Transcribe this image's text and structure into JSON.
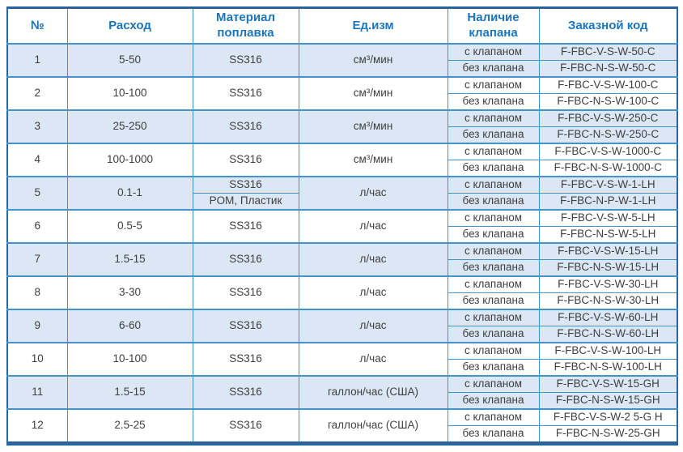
{
  "table": {
    "headers": {
      "num": "№",
      "flow": "Расход",
      "material": "Материал поплавка",
      "unit": "Ед.изм",
      "valve": "Наличие клапана",
      "code": "Заказной код"
    },
    "rows": [
      {
        "num": "1",
        "flow": "5-50",
        "material": "SS316",
        "unit": "см³/мин",
        "variants": [
          {
            "valve": "с клапаном",
            "code": "F-FBC-V-S-W-50-C"
          },
          {
            "valve": "без клапана",
            "code": "F-FBC-N-S-W-50-C"
          }
        ]
      },
      {
        "num": "2",
        "flow": "10-100",
        "material": "SS316",
        "unit": "см³/мин",
        "variants": [
          {
            "valve": "с клапаном",
            "code": "F-FBC-V-S-W-100-C"
          },
          {
            "valve": "без клапана",
            "code": "F-FBC-N-S-W-100-C"
          }
        ]
      },
      {
        "num": "3",
        "flow": "25-250",
        "material": "SS316",
        "unit": "см³/мин",
        "variants": [
          {
            "valve": "с клапаном",
            "code": "F-FBC-V-S-W-250-C"
          },
          {
            "valve": "без клапана",
            "code": "F-FBC-N-S-W-250-C"
          }
        ]
      },
      {
        "num": "4",
        "flow": "100-1000",
        "material": "SS316",
        "unit": "см³/мин",
        "variants": [
          {
            "valve": "с клапаном",
            "code": "F-FBC-V-S-W-1000-C"
          },
          {
            "valve": "без клапана",
            "code": "F-FBC-N-S-W-1000-C"
          }
        ]
      },
      {
        "num": "5",
        "flow": "0.1-1",
        "material": "SS316",
        "material2": "POM, Пластик",
        "unit": "л/час",
        "variants": [
          {
            "valve": "с клапаном",
            "code": "F-FBC-V-S-W-1-LH"
          },
          {
            "valve": "без клапана",
            "code": "F-FBC-N-P-W-1-LH"
          }
        ]
      },
      {
        "num": "6",
        "flow": "0.5-5",
        "material": "SS316",
        "unit": "л/час",
        "variants": [
          {
            "valve": "с клапаном",
            "code": "F-FBC-V-S-W-5-LH"
          },
          {
            "valve": "без клапана",
            "code": "F-FBC-N-S-W-5-LH"
          }
        ]
      },
      {
        "num": "7",
        "flow": "1.5-15",
        "material": "SS316",
        "unit": "л/час",
        "variants": [
          {
            "valve": "с клапаном",
            "code": "F-FBC-V-S-W-15-LH"
          },
          {
            "valve": "без клапана",
            "code": "F-FBC-N-S-W-15-LH"
          }
        ]
      },
      {
        "num": "8",
        "flow": "3-30",
        "material": "SS316",
        "unit": "л/час",
        "variants": [
          {
            "valve": "с клапаном",
            "code": "F-FBC-V-S-W-30-LH"
          },
          {
            "valve": "без клапана",
            "code": "F-FBC-N-S-W-30-LH"
          }
        ]
      },
      {
        "num": "9",
        "flow": "6-60",
        "material": "SS316",
        "unit": "л/час",
        "variants": [
          {
            "valve": "с клапаном",
            "code": "F-FBC-V-S-W-60-LH"
          },
          {
            "valve": "без клапана",
            "code": "F-FBC-N-S-W-60-LH"
          }
        ]
      },
      {
        "num": "10",
        "flow": "10-100",
        "material": "SS316",
        "unit": "л/час",
        "variants": [
          {
            "valve": "с клапаном",
            "code": "F-FBC-V-S-W-100-LH"
          },
          {
            "valve": "без клапана",
            "code": "F-FBC-N-S-W-100-LH"
          }
        ]
      },
      {
        "num": "11",
        "flow": "1.5-15",
        "material": "SS316",
        "unit": "галлон/час (США)",
        "variants": [
          {
            "valve": "с клапаном",
            "code": "F-FBC-V-S-W-15-GH"
          },
          {
            "valve": "без клапана",
            "code": "F-FBC-N-S-W-15-GH"
          }
        ]
      },
      {
        "num": "12",
        "flow": "2.5-25",
        "material": "SS316",
        "unit": "галлон/час (США)",
        "variants": [
          {
            "valve": "с клапаном",
            "code": "F-FBC-V-S-W-2 5-G H"
          },
          {
            "valve": "без клапана",
            "code": "F-FBC-N-S-W-25-GH"
          }
        ]
      }
    ],
    "colors": {
      "header_text": "#1b75bc",
      "body_text": "#3f3f3f",
      "stripe_blue": "#dbe7f4",
      "inner_border": "#4292cb",
      "outer_border": "#2a649e"
    }
  }
}
